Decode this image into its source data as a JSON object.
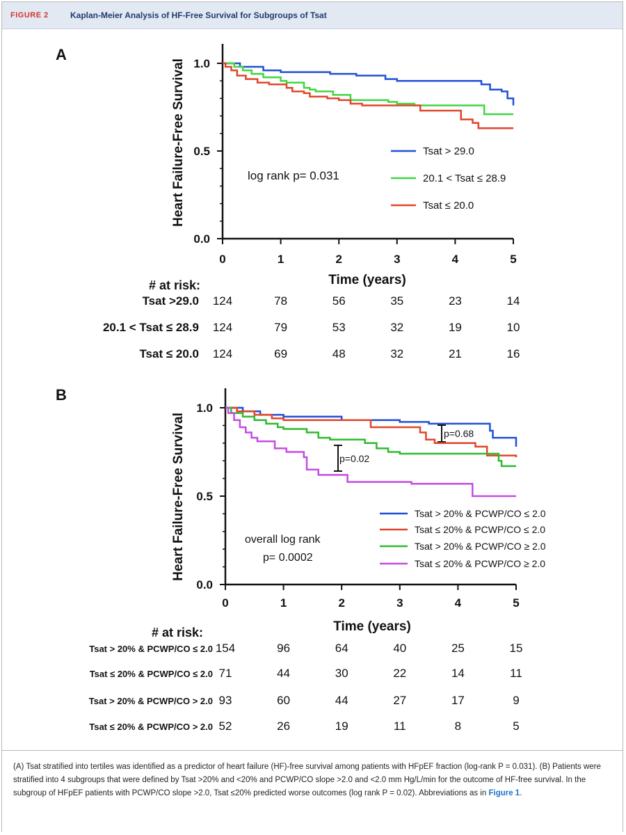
{
  "figure": {
    "label": "FIGURE 2",
    "title": "Kaplan-Meier Analysis of HF-Free Survival for Subgroups of Tsat"
  },
  "caption": {
    "text": "(A) Tsat stratified into tertiles was identified as a predictor of heart failure (HF)-free survival among patients with HFpEF fraction (log-rank P = 0.031). (B) Patients were stratified into 4 subgroups that were defined by Tsat >20% and <20% and PCWP/CO slope >2.0 and <2.0 mm Hg/L/min for the outcome of HF-free survival. In the subgroup of HFpEF patients with PCWP/CO slope >2.0, Tsat ≤20% predicted worse outcomes (log rank P = 0.02). Abbreviations as in",
    "ref": "Figure 1",
    "end": "."
  },
  "chart_data": [
    {
      "type": "line",
      "panel_label": "A",
      "ylabel": "Heart Failure-Free Survival",
      "xlabel": "Time (years)",
      "xlim": [
        0,
        5
      ],
      "ylim": [
        0,
        1.0
      ],
      "x_ticks": [
        "0",
        "1",
        "2",
        "3",
        "4",
        "5"
      ],
      "y_ticks": [
        "0.0",
        "0.5",
        "1.0"
      ],
      "annotation": "log rank p= 0.031",
      "series": [
        {
          "name": "Tsat > 29.0",
          "color": "#1f4fd6",
          "points": [
            [
              0,
              1.0
            ],
            [
              0.3,
              0.98
            ],
            [
              0.7,
              0.96
            ],
            [
              1.0,
              0.95
            ],
            [
              1.8,
              0.95
            ],
            [
              1.85,
              0.94
            ],
            [
              2.3,
              0.93
            ],
            [
              2.8,
              0.91
            ],
            [
              3.0,
              0.9
            ],
            [
              4.4,
              0.9
            ],
            [
              4.45,
              0.88
            ],
            [
              4.6,
              0.85
            ],
            [
              4.8,
              0.84
            ],
            [
              4.9,
              0.8
            ],
            [
              5.0,
              0.76
            ]
          ]
        },
        {
          "name": "20.1 < Tsat ≤ 28.9",
          "color": "#3fd63f",
          "points": [
            [
              0,
              1.0
            ],
            [
              0.2,
              0.98
            ],
            [
              0.35,
              0.96
            ],
            [
              0.5,
              0.94
            ],
            [
              0.7,
              0.92
            ],
            [
              1.0,
              0.9
            ],
            [
              1.1,
              0.89
            ],
            [
              1.4,
              0.86
            ],
            [
              1.5,
              0.85
            ],
            [
              1.6,
              0.84
            ],
            [
              1.9,
              0.82
            ],
            [
              2.2,
              0.79
            ],
            [
              2.8,
              0.79
            ],
            [
              2.85,
              0.78
            ],
            [
              3.0,
              0.77
            ],
            [
              3.3,
              0.76
            ],
            [
              4.4,
              0.76
            ],
            [
              4.5,
              0.71
            ],
            [
              5.0,
              0.71
            ]
          ]
        },
        {
          "name": "Tsat ≤ 20.0",
          "color": "#e0452a",
          "points": [
            [
              0,
              1.0
            ],
            [
              0.05,
              0.98
            ],
            [
              0.15,
              0.96
            ],
            [
              0.25,
              0.93
            ],
            [
              0.4,
              0.91
            ],
            [
              0.6,
              0.89
            ],
            [
              0.8,
              0.88
            ],
            [
              1.1,
              0.86
            ],
            [
              1.2,
              0.84
            ],
            [
              1.4,
              0.83
            ],
            [
              1.5,
              0.81
            ],
            [
              1.8,
              0.8
            ],
            [
              2.0,
              0.79
            ],
            [
              2.2,
              0.77
            ],
            [
              2.4,
              0.76
            ],
            [
              2.7,
              0.76
            ],
            [
              3.4,
              0.75
            ],
            [
              3.4,
              0.73
            ],
            [
              3.8,
              0.73
            ],
            [
              4.1,
              0.71
            ],
            [
              4.1,
              0.68
            ],
            [
              4.3,
              0.66
            ],
            [
              4.4,
              0.63
            ],
            [
              5.0,
              0.63
            ]
          ]
        }
      ],
      "at_risk": {
        "heading": "# at risk:",
        "rows": [
          {
            "label": "Tsat >29.0",
            "values": [
              "124",
              "78",
              "56",
              "35",
              "23",
              "14"
            ]
          },
          {
            "label": "20.1 < Tsat ≤ 28.9",
            "values": [
              "124",
              "79",
              "53",
              "32",
              "19",
              "10"
            ]
          },
          {
            "label": "Tsat ≤ 20.0",
            "values": [
              "124",
              "69",
              "48",
              "32",
              "21",
              "16"
            ]
          }
        ]
      }
    },
    {
      "type": "line",
      "panel_label": "B",
      "ylabel": "Heart Failure-Free Survival",
      "xlabel": "Time (years)",
      "xlim": [
        0,
        5
      ],
      "ylim": [
        0,
        1.0
      ],
      "x_ticks": [
        "0",
        "1",
        "2",
        "3",
        "4",
        "5"
      ],
      "y_ticks": [
        "0.0",
        "0.5",
        "1.0"
      ],
      "annotation_line1": "overall log rank",
      "annotation_line2": "p= 0.0002",
      "pvalue_1": "p=0.02",
      "pvalue_2": "p=0.68",
      "series": [
        {
          "name": "Tsat > 20% & PCWP/CO ≤ 2.0",
          "color": "#1f4fd6",
          "points": [
            [
              0,
              1.0
            ],
            [
              0.3,
              0.98
            ],
            [
              0.6,
              0.96
            ],
            [
              1.0,
              0.95
            ],
            [
              2.0,
              0.93
            ],
            [
              3.0,
              0.92
            ],
            [
              3.5,
              0.91
            ],
            [
              4.5,
              0.91
            ],
            [
              4.55,
              0.87
            ],
            [
              4.6,
              0.83
            ],
            [
              4.95,
              0.83
            ],
            [
              5.0,
              0.78
            ]
          ]
        },
        {
          "name": "Tsat ≤ 20% & PCWP/CO ≤ 2.0",
          "color": "#e0452a",
          "points": [
            [
              0,
              1.0
            ],
            [
              0.2,
              0.98
            ],
            [
              0.5,
              0.96
            ],
            [
              0.8,
              0.94
            ],
            [
              1.0,
              0.93
            ],
            [
              2.5,
              0.93
            ],
            [
              2.5,
              0.89
            ],
            [
              3.0,
              0.89
            ],
            [
              3.35,
              0.86
            ],
            [
              3.45,
              0.82
            ],
            [
              3.6,
              0.8
            ],
            [
              3.75,
              0.8
            ],
            [
              4.3,
              0.78
            ],
            [
              4.5,
              0.73
            ],
            [
              5.0,
              0.72
            ]
          ]
        },
        {
          "name": "Tsat > 20% & PCWP/CO ≥ 2.0",
          "color": "#2fba2f",
          "points": [
            [
              0,
              1.0
            ],
            [
              0.1,
              0.97
            ],
            [
              0.3,
              0.95
            ],
            [
              0.5,
              0.93
            ],
            [
              0.7,
              0.91
            ],
            [
              0.9,
              0.89
            ],
            [
              1.0,
              0.88
            ],
            [
              1.4,
              0.86
            ],
            [
              1.6,
              0.83
            ],
            [
              1.8,
              0.82
            ],
            [
              2.2,
              0.82
            ],
            [
              2.4,
              0.8
            ],
            [
              2.6,
              0.77
            ],
            [
              2.8,
              0.75
            ],
            [
              3.0,
              0.74
            ],
            [
              4.3,
              0.74
            ],
            [
              4.7,
              0.7
            ],
            [
              4.75,
              0.67
            ],
            [
              5.0,
              0.67
            ]
          ]
        },
        {
          "name": "Tsat ≤ 20% & PCWP/CO ≥ 2.0",
          "color": "#c54be3",
          "points": [
            [
              0,
              1.0
            ],
            [
              0.05,
              0.97
            ],
            [
              0.15,
              0.93
            ],
            [
              0.25,
              0.89
            ],
            [
              0.35,
              0.86
            ],
            [
              0.45,
              0.83
            ],
            [
              0.55,
              0.81
            ],
            [
              0.85,
              0.77
            ],
            [
              1.05,
              0.75
            ],
            [
              1.35,
              0.72
            ],
            [
              1.4,
              0.65
            ],
            [
              1.6,
              0.62
            ],
            [
              1.9,
              0.62
            ],
            [
              2.1,
              0.58
            ],
            [
              2.6,
              0.58
            ],
            [
              3.2,
              0.58
            ],
            [
              3.2,
              0.57
            ],
            [
              4.25,
              0.57
            ],
            [
              4.25,
              0.5
            ],
            [
              5.0,
              0.5
            ]
          ]
        }
      ],
      "at_risk": {
        "heading": "# at risk:",
        "rows": [
          {
            "label": "Tsat > 20% & PCWP/CO ≤ 2.0",
            "values": [
              "154",
              "96",
              "64",
              "40",
              "25",
              "15"
            ]
          },
          {
            "label": "Tsat ≤ 20% & PCWP/CO ≤ 2.0",
            "values": [
              "71",
              "44",
              "30",
              "22",
              "14",
              "11"
            ]
          },
          {
            "label": "Tsat > 20% & PCWP/CO > 2.0",
            "values": [
              "93",
              "60",
              "44",
              "27",
              "17",
              "9"
            ]
          },
          {
            "label": "Tsat ≤ 20% & PCWP/CO > 2.0",
            "values": [
              "52",
              "26",
              "19",
              "11",
              "8",
              "5"
            ]
          }
        ]
      }
    }
  ]
}
